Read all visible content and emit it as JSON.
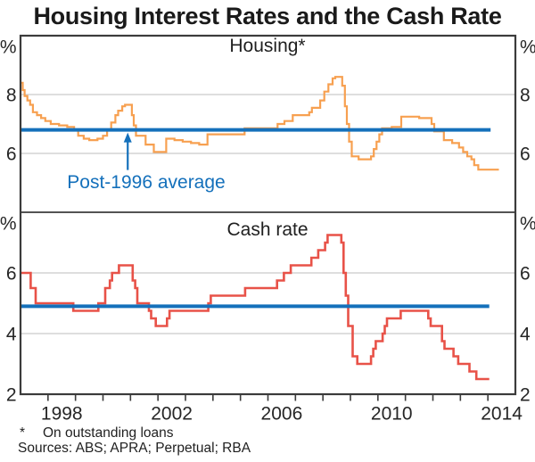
{
  "title": "Housing Interest Rates and the Cash Rate",
  "annotation": {
    "label": "Post-1996 average",
    "color": "#1470BB",
    "arrow_target_year": 2000.9,
    "arrow_target_value": 6.8
  },
  "footnote": {
    "marker": "*",
    "text": "On outstanding loans"
  },
  "sources": "Sources: ABS; APRA; Perpetual; RBA",
  "colors": {
    "housing_line": "#F7A050",
    "cash_line": "#E85248",
    "average_line": "#1470BB",
    "grid": "#C9C9C9",
    "axis": "#3B3B3B",
    "text": "#262626"
  },
  "chart_data": [
    {
      "type": "line",
      "panel": "top",
      "title": "Housing*",
      "unit": "%",
      "ylim": [
        4,
        10
      ],
      "yticks": [
        6,
        8
      ],
      "xlim": [
        1997,
        2015
      ],
      "grid": true,
      "series": [
        {
          "name": "Housing interest rate (on outstanding loans)",
          "color_key": "housing_line",
          "step": true,
          "width": 2.2,
          "points": [
            [
              1997.0,
              8.4
            ],
            [
              1997.08,
              8.15
            ],
            [
              1997.15,
              7.95
            ],
            [
              1997.25,
              7.8
            ],
            [
              1997.35,
              7.65
            ],
            [
              1997.45,
              7.4
            ],
            [
              1997.6,
              7.3
            ],
            [
              1997.75,
              7.2
            ],
            [
              1997.9,
              7.1
            ],
            [
              1998.1,
              7.0
            ],
            [
              1998.4,
              6.95
            ],
            [
              1998.7,
              6.9
            ],
            [
              1998.95,
              6.8
            ],
            [
              1999.1,
              6.6
            ],
            [
              1999.3,
              6.5
            ],
            [
              1999.5,
              6.45
            ],
            [
              1999.8,
              6.5
            ],
            [
              2000.0,
              6.6
            ],
            [
              2000.15,
              6.8
            ],
            [
              2000.3,
              7.05
            ],
            [
              2000.45,
              7.3
            ],
            [
              2000.55,
              7.45
            ],
            [
              2000.7,
              7.6
            ],
            [
              2000.8,
              7.65
            ],
            [
              2001.05,
              7.3
            ],
            [
              2001.12,
              6.95
            ],
            [
              2001.2,
              6.6
            ],
            [
              2001.55,
              6.3
            ],
            [
              2001.85,
              6.05
            ],
            [
              2002.3,
              6.5
            ],
            [
              2002.6,
              6.45
            ],
            [
              2002.9,
              6.4
            ],
            [
              2003.2,
              6.35
            ],
            [
              2003.5,
              6.3
            ],
            [
              2003.8,
              6.65
            ],
            [
              2005.15,
              6.85
            ],
            [
              2006.35,
              7.0
            ],
            [
              2006.6,
              7.1
            ],
            [
              2006.9,
              7.3
            ],
            [
              2007.5,
              7.4
            ],
            [
              2007.6,
              7.55
            ],
            [
              2007.9,
              7.8
            ],
            [
              2008.05,
              8.1
            ],
            [
              2008.2,
              8.35
            ],
            [
              2008.35,
              8.55
            ],
            [
              2008.45,
              8.6
            ],
            [
              2008.7,
              8.3
            ],
            [
              2008.8,
              7.6
            ],
            [
              2008.87,
              7.0
            ],
            [
              2008.95,
              6.4
            ],
            [
              2009.05,
              5.9
            ],
            [
              2009.3,
              5.8
            ],
            [
              2009.75,
              5.9
            ],
            [
              2009.85,
              6.15
            ],
            [
              2009.95,
              6.4
            ],
            [
              2010.05,
              6.65
            ],
            [
              2010.15,
              6.85
            ],
            [
              2010.5,
              6.9
            ],
            [
              2010.85,
              7.25
            ],
            [
              2011.5,
              7.2
            ],
            [
              2011.95,
              7.0
            ],
            [
              2012.05,
              6.75
            ],
            [
              2012.4,
              6.45
            ],
            [
              2012.7,
              6.35
            ],
            [
              2012.95,
              6.2
            ],
            [
              2013.1,
              6.05
            ],
            [
              2013.25,
              5.9
            ],
            [
              2013.4,
              5.8
            ],
            [
              2013.5,
              5.6
            ],
            [
              2013.65,
              5.45
            ],
            [
              2014.4,
              5.45
            ]
          ]
        },
        {
          "name": "Post-1996 average",
          "color_key": "average_line",
          "step": false,
          "width": 4,
          "points": [
            [
              1997.0,
              6.8
            ],
            [
              2014.1,
              6.8
            ]
          ]
        }
      ]
    },
    {
      "type": "line",
      "panel": "bottom",
      "title": "Cash rate",
      "unit": "%",
      "ylim": [
        2,
        8
      ],
      "yticks": [
        2,
        4,
        6
      ],
      "xlim": [
        1997,
        2015
      ],
      "grid": true,
      "xticks": [
        1998,
        1999,
        2000,
        2001,
        2002,
        2003,
        2004,
        2005,
        2006,
        2007,
        2008,
        2009,
        2010,
        2011,
        2012,
        2013,
        2014
      ],
      "xtick_labels": [
        {
          "pos": 1998.5,
          "label": "1998"
        },
        {
          "pos": 2002.5,
          "label": "2002"
        },
        {
          "pos": 2006.5,
          "label": "2006"
        },
        {
          "pos": 2010.5,
          "label": "2010"
        },
        {
          "pos": 2014.5,
          "label": "2014"
        }
      ],
      "series": [
        {
          "name": "Cash rate",
          "color_key": "cash_line",
          "step": true,
          "width": 2.6,
          "points": [
            [
              1997.0,
              6.0
            ],
            [
              1997.37,
              5.5
            ],
            [
              1997.55,
              5.0
            ],
            [
              1998.92,
              4.75
            ],
            [
              1999.83,
              5.0
            ],
            [
              2000.08,
              5.5
            ],
            [
              2000.25,
              5.75
            ],
            [
              2000.33,
              6.0
            ],
            [
              2000.58,
              6.25
            ],
            [
              2001.08,
              5.75
            ],
            [
              2001.17,
              5.5
            ],
            [
              2001.25,
              5.0
            ],
            [
              2001.67,
              4.75
            ],
            [
              2001.75,
              4.5
            ],
            [
              2001.92,
              4.25
            ],
            [
              2002.33,
              4.5
            ],
            [
              2002.42,
              4.75
            ],
            [
              2003.83,
              5.0
            ],
            [
              2003.92,
              5.25
            ],
            [
              2005.17,
              5.5
            ],
            [
              2006.33,
              5.75
            ],
            [
              2006.58,
              6.0
            ],
            [
              2006.83,
              6.25
            ],
            [
              2007.58,
              6.5
            ],
            [
              2007.83,
              6.75
            ],
            [
              2008.08,
              7.0
            ],
            [
              2008.17,
              7.25
            ],
            [
              2008.67,
              7.0
            ],
            [
              2008.75,
              6.0
            ],
            [
              2008.83,
              5.25
            ],
            [
              2008.92,
              4.25
            ],
            [
              2009.08,
              3.25
            ],
            [
              2009.25,
              3.0
            ],
            [
              2009.75,
              3.25
            ],
            [
              2009.83,
              3.5
            ],
            [
              2009.92,
              3.75
            ],
            [
              2010.17,
              4.0
            ],
            [
              2010.25,
              4.25
            ],
            [
              2010.33,
              4.5
            ],
            [
              2010.83,
              4.75
            ],
            [
              2011.83,
              4.5
            ],
            [
              2011.92,
              4.25
            ],
            [
              2012.33,
              3.75
            ],
            [
              2012.42,
              3.5
            ],
            [
              2012.75,
              3.25
            ],
            [
              2012.92,
              3.0
            ],
            [
              2013.33,
              2.75
            ],
            [
              2013.58,
              2.5
            ],
            [
              2014.05,
              2.5
            ]
          ]
        },
        {
          "name": "Post-1996 average",
          "color_key": "average_line",
          "step": false,
          "width": 4,
          "points": [
            [
              1997.0,
              4.9
            ],
            [
              2014.05,
              4.9
            ]
          ]
        }
      ]
    }
  ]
}
